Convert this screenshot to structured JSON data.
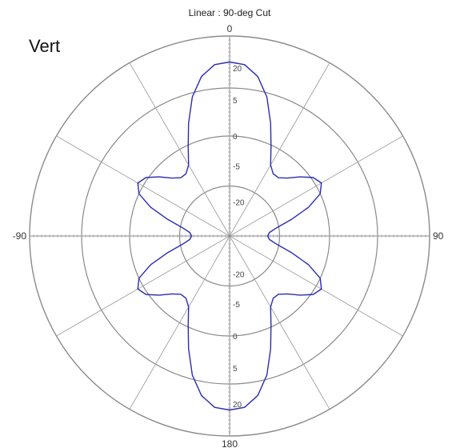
{
  "chart_data": {
    "type": "polar-line",
    "title": "Linear : 90-deg Cut",
    "corner_label": "Vert",
    "angle_labels": [
      {
        "angle": 0,
        "text": "0"
      },
      {
        "angle": 90,
        "text": "90"
      },
      {
        "angle": 180,
        "text": "180"
      },
      {
        "angle": -90,
        "text": "-90"
      }
    ],
    "radial_axis": {
      "ring_labels_top": [
        "20",
        "5",
        "0",
        "-5",
        "-20"
      ],
      "ring_labels_bottom": [
        "-20",
        "-5",
        "0",
        "5",
        "20"
      ]
    },
    "spoke_step_deg": 30,
    "grid": true,
    "series": [
      {
        "color": "#2b2bb8",
        "points": [
          {
            "angle": 0,
            "r": 0.87
          },
          {
            "angle": 5,
            "r": 0.86
          },
          {
            "angle": 10,
            "r": 0.81
          },
          {
            "angle": 15,
            "r": 0.72
          },
          {
            "angle": 20,
            "r": 0.6
          },
          {
            "angle": 25,
            "r": 0.49
          },
          {
            "angle": 30,
            "r": 0.41
          },
          {
            "angle": 35,
            "r": 0.38
          },
          {
            "angle": 40,
            "r": 0.38
          },
          {
            "angle": 45,
            "r": 0.41
          },
          {
            "angle": 50,
            "r": 0.46
          },
          {
            "angle": 55,
            "r": 0.51
          },
          {
            "angle": 60,
            "r": 0.53
          },
          {
            "angle": 65,
            "r": 0.5
          },
          {
            "angle": 70,
            "r": 0.42
          },
          {
            "angle": 75,
            "r": 0.32
          },
          {
            "angle": 80,
            "r": 0.24
          },
          {
            "angle": 85,
            "r": 0.2
          },
          {
            "angle": 90,
            "r": 0.19
          },
          {
            "angle": 95,
            "r": 0.2
          },
          {
            "angle": 100,
            "r": 0.24
          },
          {
            "angle": 105,
            "r": 0.32
          },
          {
            "angle": 110,
            "r": 0.42
          },
          {
            "angle": 115,
            "r": 0.5
          },
          {
            "angle": 120,
            "r": 0.53
          },
          {
            "angle": 125,
            "r": 0.51
          },
          {
            "angle": 130,
            "r": 0.46
          },
          {
            "angle": 135,
            "r": 0.41
          },
          {
            "angle": 140,
            "r": 0.38
          },
          {
            "angle": 145,
            "r": 0.38
          },
          {
            "angle": 150,
            "r": 0.41
          },
          {
            "angle": 155,
            "r": 0.49
          },
          {
            "angle": 160,
            "r": 0.6
          },
          {
            "angle": 165,
            "r": 0.72
          },
          {
            "angle": 170,
            "r": 0.81
          },
          {
            "angle": 175,
            "r": 0.86
          },
          {
            "angle": 180,
            "r": 0.87
          }
        ]
      }
    ]
  }
}
